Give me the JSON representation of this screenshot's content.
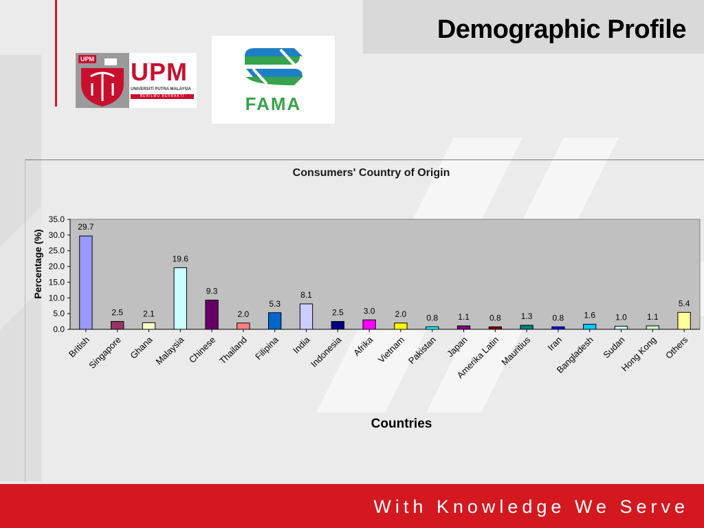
{
  "slide": {
    "title": "Demographic Profile",
    "footer": "With Knowledge We Serve"
  },
  "logos": {
    "upm": {
      "tag": "UPM",
      "wordmark": "UPM",
      "subtitle": "UNIVERSITI PUTRA MALAYSIA",
      "motto": "BERILMU BERBAKTI"
    },
    "fama": {
      "wordmark": "FAMA"
    }
  },
  "colors": {
    "accent_red": "#d4181f",
    "plot_bg": "#c0c0c0"
  },
  "chart_data": {
    "type": "bar",
    "title": "Consumers' Country of Origin",
    "xlabel": "Countries",
    "ylabel": "Percentage (%)",
    "ylim": [
      0,
      35
    ],
    "yticks": [
      "0.0",
      "5.0",
      "10.0",
      "15.0",
      "20.0",
      "25.0",
      "30.0",
      "35.0"
    ],
    "grid": false,
    "legend": "none",
    "categories": [
      "British",
      "Singapore",
      "Ghana",
      "Malaysia",
      "Chinese",
      "Thailand",
      "Filipina",
      "India",
      "Indonesia",
      "Afrika",
      "Vietnam",
      "Pakistan",
      "Japan",
      "Amerika Latin",
      "Mauritius",
      "Iran",
      "Bangladesh",
      "Sudan",
      "Hong Kong",
      "Others"
    ],
    "values": [
      29.7,
      2.5,
      2.1,
      19.6,
      9.3,
      2.0,
      5.3,
      8.1,
      2.5,
      3.0,
      2.0,
      0.8,
      1.1,
      0.8,
      1.3,
      0.8,
      1.6,
      1.0,
      1.1,
      5.4
    ],
    "value_labels": [
      "29.7",
      "2.5",
      "2.1",
      "19.6",
      "9.3",
      "2.0",
      "5.3",
      "8.1",
      "2.5",
      "3.0",
      "2.0",
      "0.8",
      "1.1",
      "0.8",
      "1.3",
      "0.8",
      "1.6",
      "1.0",
      "1.1",
      "5.4"
    ],
    "bar_colors": [
      "#9999ff",
      "#993366",
      "#ffffcc",
      "#ccffff",
      "#660066",
      "#ff8080",
      "#0066cc",
      "#ccccff",
      "#000080",
      "#ff00ff",
      "#ffff00",
      "#00ffff",
      "#800080",
      "#800000",
      "#008080",
      "#0000ff",
      "#00ccff",
      "#ccffff",
      "#ccffcc",
      "#ffff99"
    ]
  }
}
